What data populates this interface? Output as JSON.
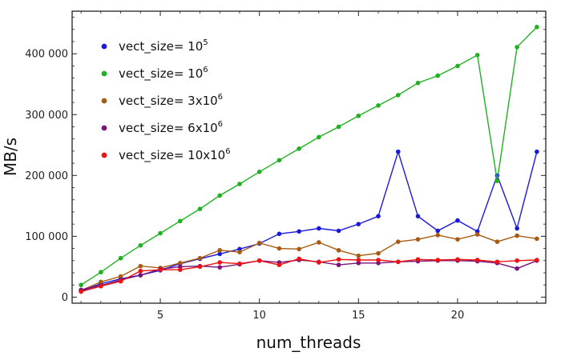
{
  "chart_data": {
    "type": "line",
    "xlabel": "num_threads",
    "ylabel": "MB/s",
    "xlim": [
      0.55,
      24.45
    ],
    "ylim": [
      -10000,
      470000
    ],
    "xticks": [
      5,
      10,
      15,
      20
    ],
    "yticks": [
      0,
      100000,
      200000,
      300000,
      400000
    ],
    "ytick_labels": [
      "0",
      "100 000",
      "200 000",
      "300 000",
      "400 000"
    ],
    "grid": false,
    "legend_position": "top-left",
    "x": [
      1,
      2,
      3,
      4,
      5,
      6,
      7,
      8,
      9,
      10,
      11,
      12,
      13,
      14,
      15,
      16,
      17,
      18,
      19,
      20,
      21,
      22,
      23,
      24
    ],
    "series": [
      {
        "legend_main": "vect_size= 10",
        "legend_sup": "5",
        "legend_tail": "",
        "color": "#1a1adb",
        "values": [
          10000,
          22000,
          30000,
          36000,
          44000,
          55000,
          63000,
          71000,
          79000,
          88000,
          104000,
          108000,
          113000,
          109000,
          120000,
          133000,
          239000,
          133000,
          109000,
          126000,
          108000,
          200000,
          113000,
          239000
        ]
      },
      {
        "legend_main": "vect_size= 10",
        "legend_sup": "6",
        "legend_tail": "",
        "color": "#1fb11f",
        "values": [
          20000,
          41000,
          64000,
          85000,
          105000,
          125000,
          145000,
          167000,
          186000,
          206000,
          225000,
          244000,
          263000,
          280000,
          298000,
          315000,
          332000,
          352000,
          364000,
          380000,
          398000,
          191000,
          411000,
          444000
        ]
      },
      {
        "legend_main": "vect_size= 3x10",
        "legend_sup": "6",
        "legend_tail": "",
        "color": "#a85a12",
        "values": [
          11000,
          25000,
          34000,
          51000,
          48000,
          56000,
          64000,
          77000,
          74000,
          89000,
          80000,
          79000,
          90000,
          77000,
          68000,
          72000,
          91000,
          95000,
          102000,
          95000,
          103000,
          91000,
          101000,
          96000
        ]
      },
      {
        "legend_main": "vect_size= 6x10",
        "legend_sup": "6",
        "legend_tail": "",
        "color": "#7a137a",
        "values": [
          12000,
          19000,
          28000,
          36000,
          46000,
          50000,
          51000,
          49000,
          54000,
          60000,
          57000,
          61000,
          58000,
          53000,
          56000,
          56000,
          58000,
          59000,
          60000,
          60000,
          59000,
          56000,
          47000,
          60000
        ]
      },
      {
        "legend_main": "vect_size= 10x10",
        "legend_sup": "6",
        "legend_tail": "",
        "color": "#ee1111",
        "values": [
          9000,
          18000,
          26000,
          43000,
          45000,
          45000,
          50000,
          57000,
          55000,
          60000,
          53000,
          63000,
          57000,
          62000,
          61000,
          61000,
          58000,
          62000,
          61000,
          62000,
          61000,
          58000,
          60000,
          61000
        ]
      }
    ]
  }
}
